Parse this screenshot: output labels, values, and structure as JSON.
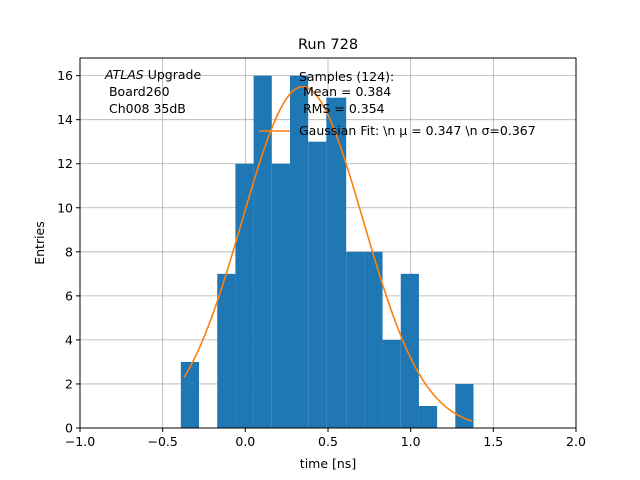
{
  "chart_data": {
    "type": "histogram",
    "title": "Run 728",
    "xlabel": "time [ns]",
    "ylabel": "Entries",
    "xlim": [
      -1.0,
      2.0
    ],
    "ylim": [
      0,
      16.8
    ],
    "grid": true,
    "xticks": [
      -1.0,
      -0.5,
      0.0,
      0.5,
      1.0,
      1.5,
      2.0
    ],
    "xtick_labels": [
      "−1.0",
      "−0.5",
      "0.0",
      "0.5",
      "1.0",
      "1.5",
      "2.0"
    ],
    "yticks": [
      0,
      2,
      4,
      6,
      8,
      10,
      12,
      14,
      16
    ],
    "ytick_labels": [
      "0",
      "2",
      "4",
      "6",
      "8",
      "10",
      "12",
      "14",
      "16"
    ],
    "bins": [
      {
        "x0": -0.39,
        "x1": -0.28,
        "count": 3
      },
      {
        "x0": -0.28,
        "x1": -0.17,
        "count": 0
      },
      {
        "x0": -0.17,
        "x1": -0.06,
        "count": 7
      },
      {
        "x0": -0.06,
        "x1": 0.05,
        "count": 12
      },
      {
        "x0": 0.05,
        "x1": 0.16,
        "count": 16
      },
      {
        "x0": 0.16,
        "x1": 0.27,
        "count": 12
      },
      {
        "x0": 0.27,
        "x1": 0.38,
        "count": 16
      },
      {
        "x0": 0.38,
        "x1": 0.49,
        "count": 13
      },
      {
        "x0": 0.49,
        "x1": 0.61,
        "count": 15
      },
      {
        "x0": 0.61,
        "x1": 0.72,
        "count": 8
      },
      {
        "x0": 0.72,
        "x1": 0.83,
        "count": 8
      },
      {
        "x0": 0.83,
        "x1": 0.94,
        "count": 4
      },
      {
        "x0": 0.94,
        "x1": 1.05,
        "count": 7
      },
      {
        "x0": 1.05,
        "x1": 1.16,
        "count": 1
      },
      {
        "x0": 1.16,
        "x1": 1.27,
        "count": 0
      },
      {
        "x0": 1.27,
        "x1": 1.38,
        "count": 2
      }
    ],
    "fit": {
      "type": "gaussian",
      "amplitude": 15.5,
      "mu": 0.347,
      "sigma": 0.367,
      "x_range": [
        -0.37,
        1.37
      ],
      "legend_label": "Gaussian Fit: \\n μ = 0.347 \\n σ=0.367"
    },
    "bar_color": "#1f77b4",
    "fit_color": "#ff7f0e",
    "annotations": {
      "experiment_italic": "ATLAS",
      "experiment_rest": " Upgrade",
      "board": " Board260",
      "channel": " Ch008 35dB"
    },
    "stats": {
      "samples": "Samples (124):",
      "mean": "Mean = 0.384",
      "rms": "RMS = 0.354"
    }
  }
}
